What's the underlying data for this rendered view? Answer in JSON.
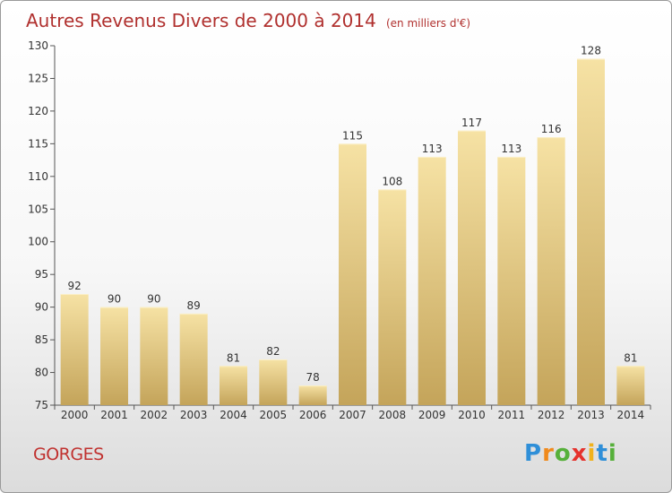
{
  "title": "Autres Revenus Divers de 2000 à 2014",
  "unit": "(en milliers d'€)",
  "location": "GORGES",
  "brand": {
    "letters": [
      "P",
      "r",
      "o",
      "x",
      "i",
      "t",
      "i"
    ],
    "colors": [
      "#2f8fd8",
      "#f08a1c",
      "#56b03a",
      "#e5322d",
      "#f0b21c",
      "#2f8fd8",
      "#56b03a"
    ]
  },
  "colors": {
    "bar_light": "#f6e2a4",
    "bar_dark": "#c4a45a",
    "text": "#333333",
    "grid": "#c8c8c8"
  },
  "chart_data": {
    "type": "bar",
    "categories": [
      "2000",
      "2001",
      "2002",
      "2003",
      "2004",
      "2005",
      "2006",
      "2007",
      "2008",
      "2009",
      "2010",
      "2011",
      "2012",
      "2013",
      "2014"
    ],
    "values": [
      92,
      90,
      90,
      89,
      81,
      82,
      78,
      115,
      108,
      113,
      117,
      113,
      116,
      128,
      81
    ],
    "ylim": [
      75,
      130
    ],
    "yticks": [
      75,
      80,
      85,
      90,
      95,
      100,
      105,
      110,
      115,
      120,
      125,
      130
    ],
    "grid": false,
    "legend": "none"
  }
}
